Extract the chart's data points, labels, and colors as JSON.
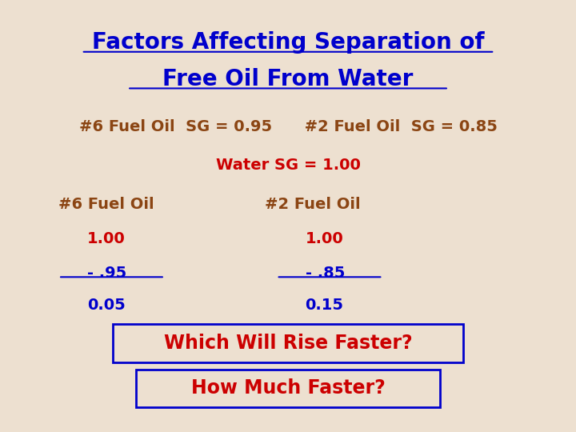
{
  "title_line1": "Factors Affecting Separation of",
  "title_line2": "Free Oil From Water",
  "title_color": "#0000CC",
  "bg_color": "#EDE0D0",
  "subtitle_color": "#8B4513",
  "subtitle_text": "#6 Fuel Oil  SG = 0.95      #2 Fuel Oil  SG = 0.85",
  "water_text": "Water SG = 1.00",
  "water_color": "#CC0000",
  "col1_header": "#6 Fuel Oil",
  "col1_vals": [
    "1.00",
    "- .95",
    "0.05"
  ],
  "col2_header": "#2 Fuel Oil",
  "col2_vals": [
    "1.00",
    "- .85",
    "0.15"
  ],
  "col_header_color": "#8B4513",
  "col_num_color": "#CC0000",
  "col_underline_color": "#0000CC",
  "col_result_color": "#0000CC",
  "box1_text": "Which Will Rise Faster?",
  "box2_text": "How Much Faster?",
  "box_text_color": "#CC0000",
  "box_edge_color": "#0000CC"
}
